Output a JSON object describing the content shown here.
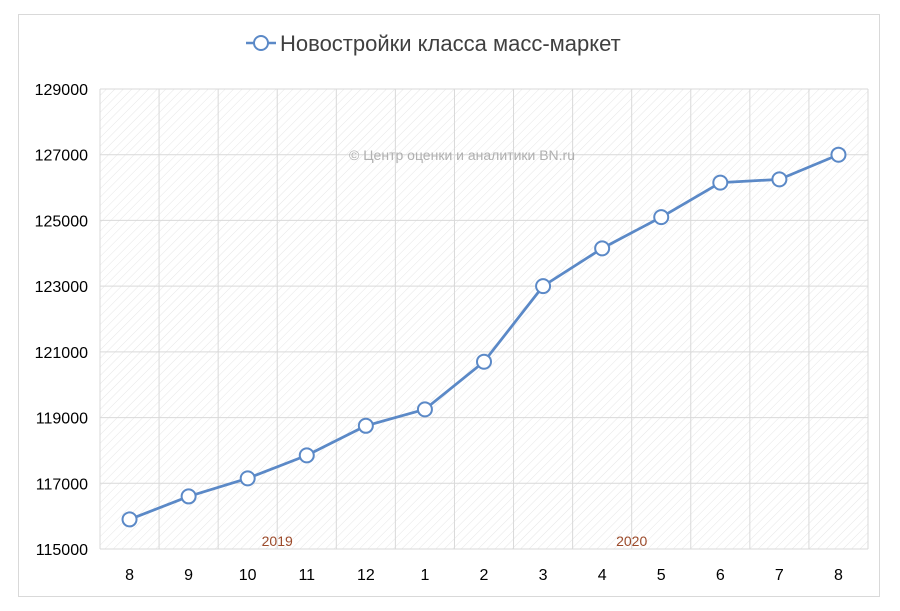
{
  "chart_data": {
    "type": "line",
    "title": "Новостройки класса масс-маркет",
    "legend": {
      "name": "Новостройки класса масс-маркет",
      "placement": "top-center"
    },
    "watermark": "© Центр оценки и аналитики BN.ru",
    "categories": [
      "8",
      "9",
      "10",
      "11",
      "12",
      "1",
      "2",
      "3",
      "4",
      "5",
      "6",
      "7",
      "8"
    ],
    "year_labels": [
      {
        "label": "2019",
        "category_index": 2.5
      },
      {
        "label": "2020",
        "category_index": 8.5
      }
    ],
    "series": [
      {
        "name": "Новостройки класса масс-маркет",
        "values": [
          115900,
          116600,
          117150,
          117850,
          118750,
          119250,
          120700,
          123000,
          124150,
          125100,
          126150,
          126250,
          127000
        ]
      }
    ],
    "ylim": [
      115000,
      129000
    ],
    "yticks": [
      115000,
      117000,
      119000,
      121000,
      123000,
      125000,
      127000,
      129000
    ],
    "grid": true,
    "xlabel": "",
    "ylabel": ""
  },
  "colors": {
    "line": "#5b89c7",
    "marker_fill": "#ffffff",
    "grid": "#d9d9d9",
    "year_label": "#9c4a2a",
    "watermark": "#b0b0b0",
    "text": "#000000",
    "title": "#404040"
  }
}
